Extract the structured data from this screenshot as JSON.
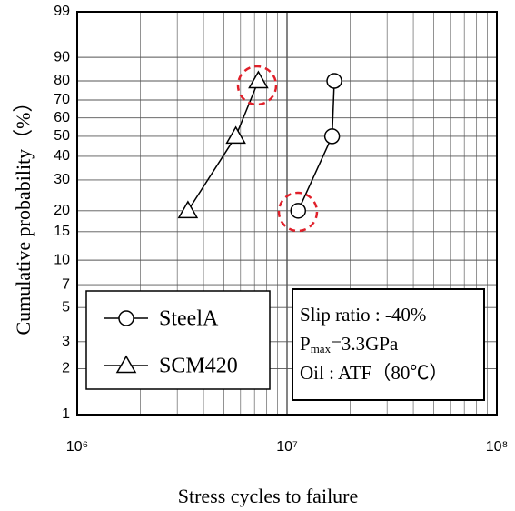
{
  "chart_data": {
    "type": "line",
    "x_label": "Stress cycles to failure",
    "y_label": "Cumulative probability（%）",
    "xscale": "log",
    "yscale": "weibull",
    "xlim": [
      1000000,
      100000000
    ],
    "xticks": [
      {
        "value": 1000000,
        "label": "10⁶"
      },
      {
        "value": 10000000,
        "label": "10⁷"
      },
      {
        "value": 100000000,
        "label": "10⁸"
      }
    ],
    "xminorticks": [
      2000000,
      3000000,
      4000000,
      5000000,
      6000000,
      7000000,
      8000000,
      9000000,
      20000000,
      30000000,
      40000000,
      50000000,
      60000000,
      70000000,
      80000000,
      90000000
    ],
    "ylim": [
      1,
      99
    ],
    "yticks": [
      1,
      2,
      3,
      5,
      7,
      10,
      15,
      20,
      30,
      40,
      50,
      60,
      70,
      80,
      90,
      99
    ],
    "grid": true,
    "legend": "lower left",
    "series": [
      {
        "name": "SteelA",
        "color": "#000000",
        "marker": "circle",
        "x": [
          11300000,
          16400000,
          16800000
        ],
        "values": [
          20,
          50,
          80
        ]
      },
      {
        "name": "SCM420",
        "color": "#000000",
        "marker": "triangle",
        "x": [
          3370000,
          5700000,
          7300000
        ],
        "values": [
          20,
          50,
          80
        ]
      }
    ],
    "annotations": [
      "Slip ratio : -40%",
      [
        "P",
        "max",
        "=3.3GPa"
      ],
      "Oil : ATF（80℃）"
    ]
  }
}
